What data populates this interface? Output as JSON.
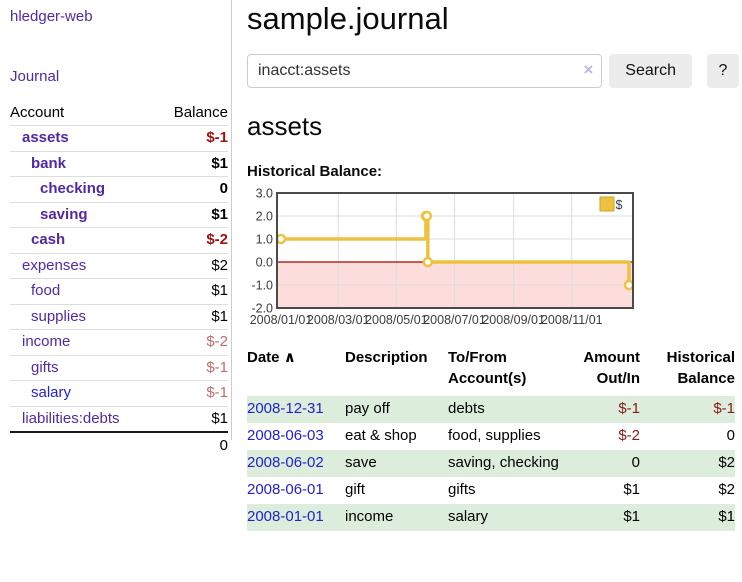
{
  "app": {
    "brand": "hledger-web",
    "nav_journal": "Journal"
  },
  "icons": {
    "sort_asc": "∧",
    "clear": "×"
  },
  "sidebar": {
    "headers": {
      "account": "Account",
      "balance": "Balance"
    },
    "rows": [
      {
        "name": "assets",
        "balance": "$-1"
      },
      {
        "name": "bank",
        "balance": "$1"
      },
      {
        "name": "checking",
        "balance": "0"
      },
      {
        "name": "saving",
        "balance": "$1"
      },
      {
        "name": "cash",
        "balance": "$-2"
      },
      {
        "name": "expenses",
        "balance": "$2"
      },
      {
        "name": "food",
        "balance": "$1"
      },
      {
        "name": "supplies",
        "balance": "$1"
      },
      {
        "name": "income",
        "balance": "$-2"
      },
      {
        "name": "gifts",
        "balance": "$-1"
      },
      {
        "name": "salary",
        "balance": "$-1"
      },
      {
        "name": "liabilities:debts",
        "balance": "$1"
      }
    ],
    "total": "0"
  },
  "main": {
    "title": "sample.journal",
    "search": {
      "value": "inacct:assets",
      "button_label": "Search",
      "help_label": "?"
    },
    "account_heading": "assets",
    "chart_heading": "Historical Balance:"
  },
  "chart_data": {
    "type": "line",
    "step": true,
    "title": "Historical Balance:",
    "series": [
      {
        "name": "$",
        "points": [
          [
            "2008-01-01",
            1
          ],
          [
            "2008-06-01",
            2
          ],
          [
            "2008-06-02",
            2
          ],
          [
            "2008-06-03",
            0
          ],
          [
            "2008-12-31",
            -1
          ]
        ]
      }
    ],
    "x_range": [
      "2008-01-01",
      "2008-12-31"
    ],
    "ylim": [
      -2,
      3
    ],
    "yticks": [
      {
        "v": 3,
        "label": "3.0"
      },
      {
        "v": 2,
        "label": "2.0"
      },
      {
        "v": 1,
        "label": "1.0"
      },
      {
        "v": 0,
        "label": "0.0"
      },
      {
        "v": -1,
        "label": "-1.0"
      },
      {
        "v": -2,
        "label": "-2.0"
      }
    ],
    "xticks": [
      {
        "date": "2008-01-01",
        "label": "2008/01/01"
      },
      {
        "date": "2008-03-01",
        "label": "2008/03/01"
      },
      {
        "date": "2008-05-01",
        "label": "2008/05/01"
      },
      {
        "date": "2008-07-01",
        "label": "2008/07/01"
      },
      {
        "date": "2008-09-01",
        "label": "2008/09/01"
      },
      {
        "date": "2008-11-01",
        "label": "2008/11/01"
      }
    ],
    "legend": {
      "label": "$",
      "position": "top-right"
    },
    "colors": {
      "line": "#edc240",
      "marker_fill": "#ffffff",
      "negative_fill": "#fddcdc",
      "zero_line": "#a80000",
      "grid": "#dddddd",
      "border": "#4a4a4a"
    }
  },
  "table": {
    "headers": {
      "date": "Date",
      "description": "Description",
      "accounts_line1": "To/From",
      "accounts_line2": "Account(s)",
      "amount_line1": "Amount",
      "amount_line2": "Out/In",
      "balance_line1": "Historical",
      "balance_line2": "Balance"
    },
    "rows": [
      {
        "date": "2008-12-31",
        "description": "pay off",
        "accounts": "debts",
        "amount": "$-1",
        "balance": "$-1"
      },
      {
        "date": "2008-06-03",
        "description": "eat & shop",
        "accounts": "food, supplies",
        "amount": "$-2",
        "balance": "0"
      },
      {
        "date": "2008-06-02",
        "description": "save",
        "accounts": "saving, checking",
        "amount": "0",
        "balance": "$2"
      },
      {
        "date": "2008-06-01",
        "description": "gift",
        "accounts": "gifts",
        "amount": "$1",
        "balance": "$2"
      },
      {
        "date": "2008-01-01",
        "description": "income",
        "accounts": "salary",
        "amount": "$1",
        "balance": "$1"
      }
    ]
  }
}
